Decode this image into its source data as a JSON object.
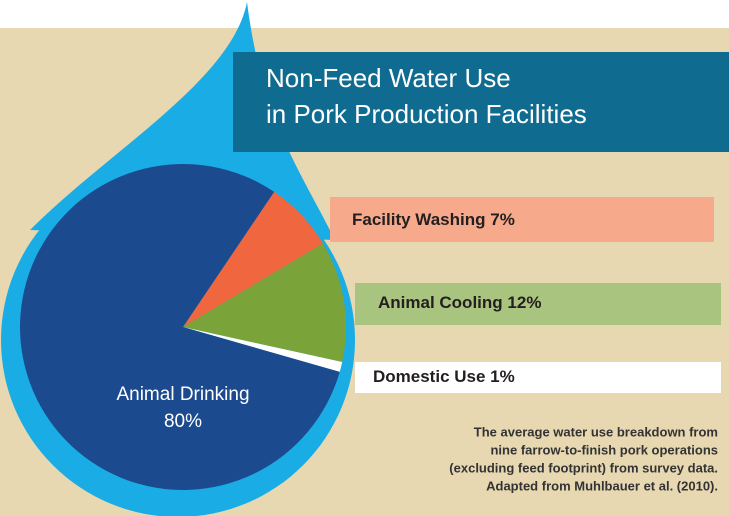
{
  "chart_data": {
    "type": "pie",
    "title": [
      "Non-Feed Water Use",
      "in Pork Production Facilities"
    ],
    "categories": [
      "Facility Washing",
      "Animal Cooling",
      "Domestic Use",
      "Animal Drinking"
    ],
    "values": [
      7,
      12,
      1,
      80
    ],
    "value_labels": [
      "7%",
      "12%",
      "1%",
      "80%"
    ],
    "colors": [
      "#f0663f",
      "#7aa43a",
      "#ffffff",
      "#1b4a8e"
    ],
    "note": [
      "The average water use breakdown from",
      "nine farrow-to-finish pork operations",
      "(excluding feed footprint) from survey data.",
      "Adapted from Muhlbauer et al. (2010)."
    ]
  }
}
